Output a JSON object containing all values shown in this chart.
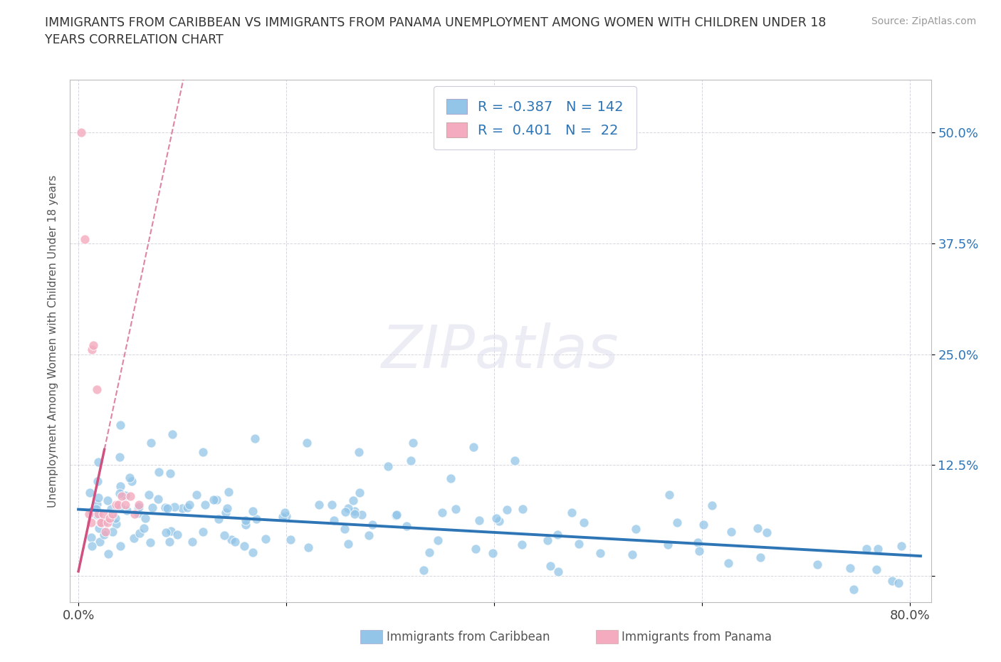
{
  "title": "IMMIGRANTS FROM CARIBBEAN VS IMMIGRANTS FROM PANAMA UNEMPLOYMENT AMONG WOMEN WITH CHILDREN UNDER 18\nYEARS CORRELATION CHART",
  "source": "Source: ZipAtlas.com",
  "ylabel": "Unemployment Among Women with Children Under 18 years",
  "xlim": [
    -0.008,
    0.82
  ],
  "ylim": [
    -0.03,
    0.56
  ],
  "yticks": [
    0.0,
    0.125,
    0.25,
    0.375,
    0.5
  ],
  "ytick_labels": [
    "",
    "12.5%",
    "25.0%",
    "37.5%",
    "50.0%"
  ],
  "xticks": [
    0.0,
    0.2,
    0.4,
    0.6,
    0.8
  ],
  "xtick_labels": [
    "0.0%",
    "",
    "",
    "",
    "80.0%"
  ],
  "background_color": "#ffffff",
  "watermark": "ZIPatlas",
  "blue_color": "#92C5E8",
  "pink_color": "#F4AABF",
  "blue_line_color": "#2E75B6",
  "pink_line_color": "#D05080",
  "tick_color": "#2E75B6",
  "R_blue": -0.387,
  "N_blue": 142,
  "R_pink": 0.401,
  "N_pink": 22,
  "blue_slope": -0.065,
  "blue_intercept": 0.075,
  "pink_slope": 5.5,
  "pink_intercept": 0.005
}
